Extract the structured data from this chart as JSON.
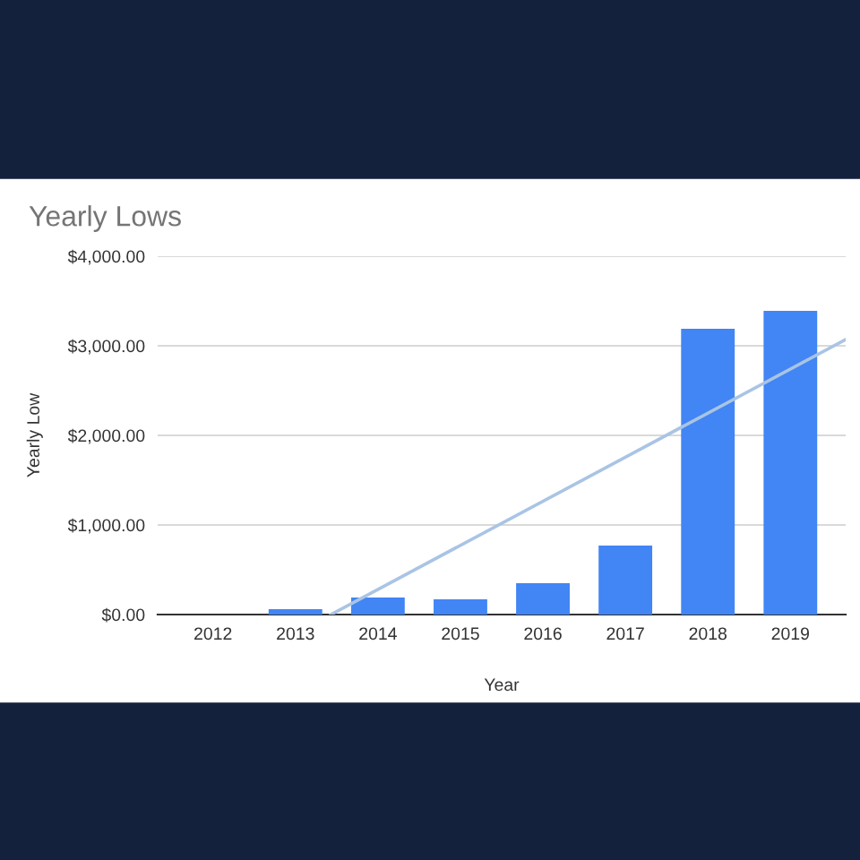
{
  "chart_data": {
    "type": "bar",
    "title": "Yearly Lows",
    "xlabel": "Year",
    "ylabel": "Yearly Low",
    "x": [
      2012,
      2013,
      2014,
      2015,
      2016,
      2017,
      2018,
      2019
    ],
    "xlim": [
      2011.33,
      2019.67
    ],
    "xticks": [
      2012,
      2013,
      2014,
      2015,
      2016,
      2017,
      2018,
      2019
    ],
    "ylim": [
      0,
      4000
    ],
    "yticks": [
      {
        "value": 0,
        "label": "$0.00"
      },
      {
        "value": 1000,
        "label": "$1,000.00"
      },
      {
        "value": 2000,
        "label": "$2,000.00"
      },
      {
        "value": 3000,
        "label": "$3,000.00"
      },
      {
        "value": 4000,
        "label": "$4,000.00"
      }
    ],
    "grid": "y",
    "legend": false,
    "series": [
      {
        "color": "#4285f4",
        "values": [
          0,
          60,
          190,
          170,
          350,
          770,
          3190,
          3390
        ]
      },
      {
        "type": "line",
        "color": "#a9c4e4",
        "x": [
          2013.43,
          2019.67
        ],
        "values": [
          0,
          3070
        ]
      }
    ]
  }
}
